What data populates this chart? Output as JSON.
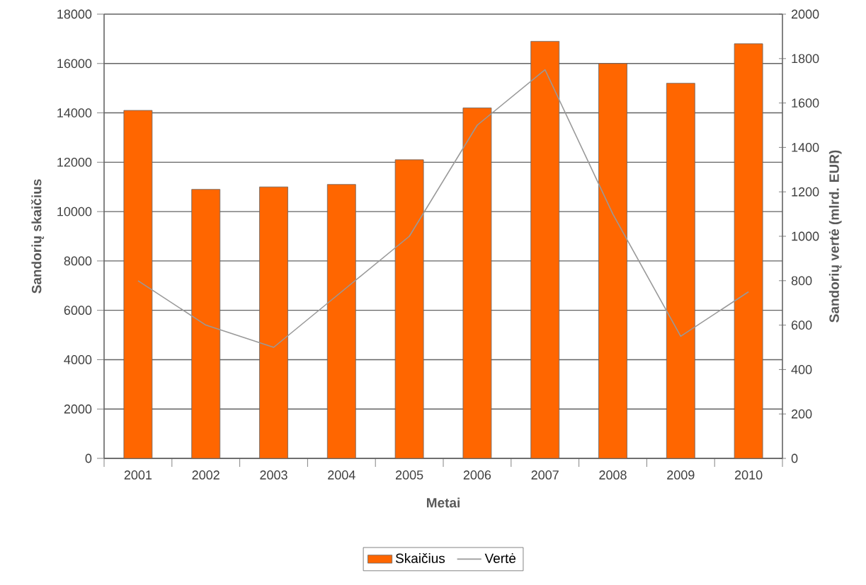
{
  "chart_data": {
    "type": "bar",
    "xlabel": "Metai",
    "ylabel": "Sandorių skaičius",
    "y2label": "Sandorių vertė (mlrd. EUR)",
    "categories": [
      "2001",
      "2002",
      "2003",
      "2004",
      "2005",
      "2006",
      "2007",
      "2008",
      "2009",
      "2010"
    ],
    "series": [
      {
        "name": "Skaičius",
        "color": "#ff6600",
        "values": [
          14100,
          10900,
          11000,
          11100,
          12100,
          14200,
          16900,
          16000,
          15200,
          16800
        ]
      },
      {
        "name": "Vertė",
        "type": "line",
        "axis": "y2",
        "color": "#999999",
        "values": [
          800,
          600,
          500,
          750,
          1000,
          1500,
          1750,
          1100,
          550,
          750
        ]
      }
    ],
    "ylim": [
      0,
      18000
    ],
    "yticks": [
      0,
      2000,
      4000,
      6000,
      8000,
      10000,
      12000,
      14000,
      16000,
      18000
    ],
    "y2lim": [
      0,
      2000
    ],
    "y2ticks": [
      0,
      200,
      400,
      600,
      800,
      1000,
      1200,
      1400,
      1600,
      1800,
      2000
    ],
    "grid": "y",
    "legend": "bottom"
  }
}
